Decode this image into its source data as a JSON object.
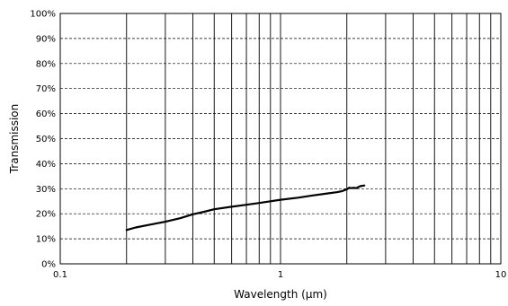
{
  "chart_data": {
    "type": "line",
    "title": "",
    "xlabel": "Wavelength (µm)",
    "ylabel": "Transmission",
    "xscale": "log",
    "xlim": [
      0.1,
      10
    ],
    "ylim": [
      0,
      100
    ],
    "x_tick_labels": [
      {
        "value": 0.1,
        "label": "0.1"
      },
      {
        "value": 1,
        "label": "1"
      },
      {
        "value": 10,
        "label": "10"
      }
    ],
    "y_tick_labels": [
      {
        "value": 0,
        "label": "0%"
      },
      {
        "value": 10,
        "label": "10%"
      },
      {
        "value": 20,
        "label": "20%"
      },
      {
        "value": 30,
        "label": "30%"
      },
      {
        "value": 40,
        "label": "40%"
      },
      {
        "value": 50,
        "label": "50%"
      },
      {
        "value": 60,
        "label": "60%"
      },
      {
        "value": 70,
        "label": "70%"
      },
      {
        "value": 80,
        "label": "80%"
      },
      {
        "value": 90,
        "label": "90%"
      },
      {
        "value": 100,
        "label": "100%"
      }
    ],
    "grid": {
      "x": "solid vertical lines at log minor ticks",
      "y": "dashed horizontal lines every 10%"
    },
    "legend": "none",
    "series": [
      {
        "color": "#000000",
        "x": [
          0.2,
          0.22,
          0.25,
          0.3,
          0.35,
          0.4,
          0.45,
          0.5,
          0.6,
          0.7,
          0.8,
          0.9,
          1.0,
          1.2,
          1.4,
          1.6,
          1.8,
          1.9,
          2.0,
          2.05,
          2.1,
          2.15,
          2.2,
          2.3,
          2.4
        ],
        "y": [
          13.5,
          14.5,
          15.5,
          16.8,
          18.2,
          19.8,
          20.8,
          21.8,
          22.8,
          23.6,
          24.3,
          25.0,
          25.6,
          26.4,
          27.3,
          28.0,
          28.6,
          29.0,
          29.8,
          30.4,
          30.2,
          30.4,
          30.2,
          31.0,
          31.3
        ]
      }
    ]
  }
}
